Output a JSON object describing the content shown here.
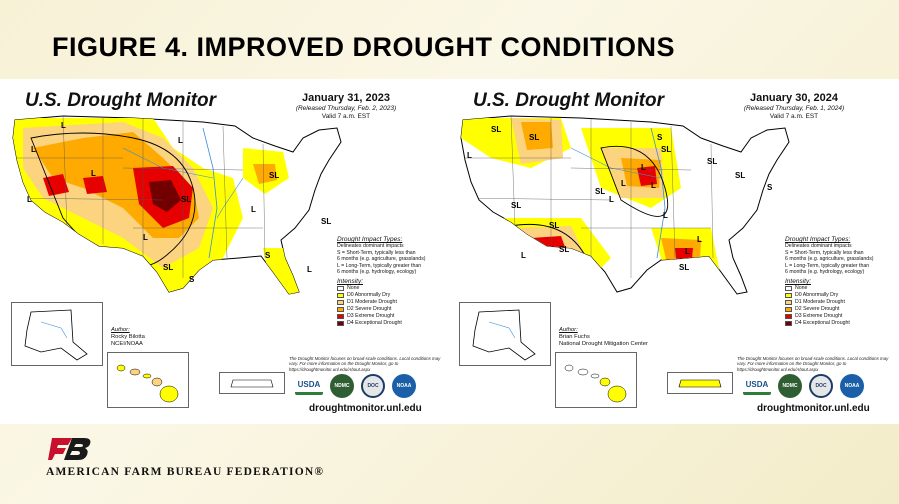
{
  "slide": {
    "title": "FIGURE 4. IMPROVED DROUGHT CONDITIONS",
    "footer_org": "AMERICAN FARM BUREAU FEDERATION®"
  },
  "colors": {
    "none": "#ffffff",
    "d0": "#ffff00",
    "d1": "#fcd37f",
    "d2": "#ffaa00",
    "d3": "#e60000",
    "d4": "#730000",
    "slide_bg": "#f7f1d6",
    "brand_red": "#c8102e"
  },
  "maps": [
    {
      "title": "U.S. Drought Monitor",
      "date": "January 31, 2023",
      "released": "(Released Thursday, Feb. 2, 2023)",
      "valid": "Valid 7 a.m. EST",
      "author_label": "Author:",
      "author_name": "Rocky Bilotta",
      "author_org": "NCEI/NOAA",
      "site": "droughtmonitor.unl.edu",
      "region_labels": [
        "L",
        "L",
        "L",
        "SL",
        "SL",
        "L",
        "SL",
        "L",
        "S",
        "SL",
        "L",
        "L",
        "L",
        "S"
      ]
    },
    {
      "title": "U.S. Drought Monitor",
      "date": "January 30, 2024",
      "released": "(Released Thursday, Feb. 1, 2024)",
      "valid": "Valid 7 a.m. EST",
      "author_label": "Author:",
      "author_name": "Brian Fuchs",
      "author_org": "National Drought Mitigation Center",
      "site": "droughtmonitor.unl.edu",
      "region_labels": [
        "SL",
        "SL",
        "L",
        "SL",
        "SL",
        "L",
        "SL",
        "L",
        "L",
        "L",
        "L",
        "SL",
        "SL",
        "L",
        "S",
        "SL",
        "L",
        "SL",
        "L",
        "S",
        "SL",
        "S"
      ]
    }
  ],
  "legend": {
    "impact_title": "Drought Impact Types:",
    "delineates": "Delineates dominant impacts",
    "s_desc_1": "S = Short-Term, typically less than",
    "s_desc_2": "6 months (e.g. agriculture, grasslands)",
    "l_desc_1": "L = Long-Term, typically greater than",
    "l_desc_2": "6 months (e.g. hydrology, ecology)",
    "intensity_title": "Intensity:",
    "levels": [
      "None",
      "D0 Abnormally Dry",
      "D1 Moderate Drought",
      "D2 Severe Drought",
      "D3 Extreme Drought",
      "D4 Exceptional Drought"
    ],
    "disclaimer_1": "The Drought Monitor focuses on broad-scale conditions.",
    "disclaimer_2": "Local conditions may vary. For more information on the",
    "disclaimer_3": "Drought Monitor, go to https://droughtmonitor.unl.edu/About.aspx",
    "logos": [
      "USDA",
      "NDMC",
      "DOC",
      "NOAA"
    ]
  }
}
